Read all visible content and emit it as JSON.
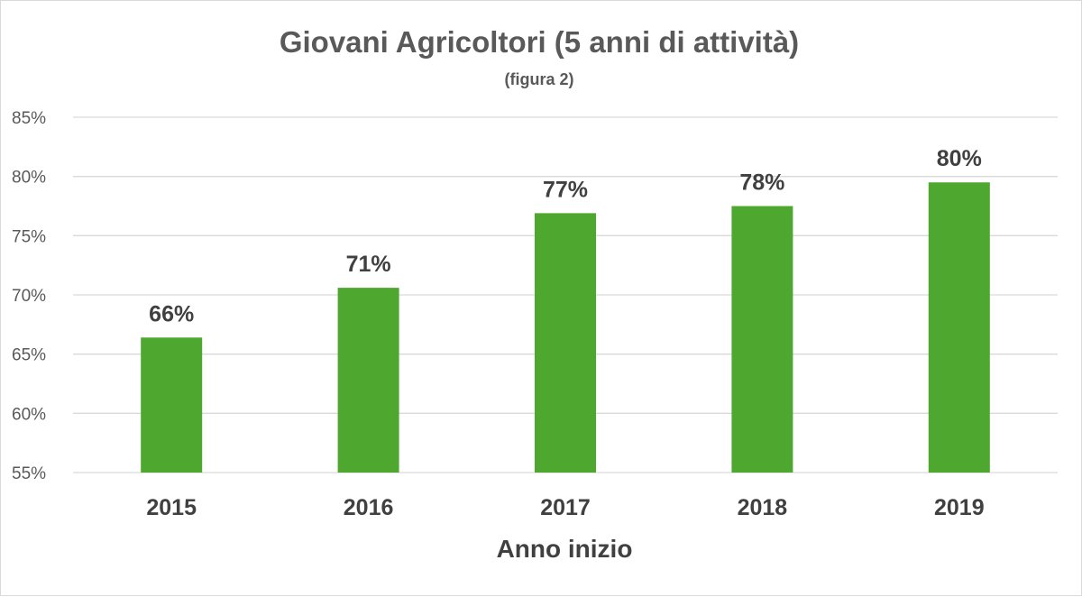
{
  "chart_data": {
    "type": "bar",
    "title": "Giovani Agricoltori (5 anni di attività)",
    "subtitle": "(figura 2)",
    "xlabel": "Anno inizio",
    "ylabel": "",
    "categories": [
      "2015",
      "2016",
      "2017",
      "2018",
      "2019"
    ],
    "values": [
      66.4,
      70.6,
      76.9,
      77.5,
      79.5
    ],
    "data_labels": [
      "66%",
      "71%",
      "77%",
      "78%",
      "80%"
    ],
    "ylim": [
      55,
      85
    ],
    "yticks": [
      55,
      60,
      65,
      70,
      75,
      80,
      85
    ],
    "ytick_labels": [
      "55%",
      "60%",
      "65%",
      "70%",
      "75%",
      "80%",
      "85%"
    ],
    "grid": true,
    "legend": "none",
    "colors": {
      "bar": "#4ea72e",
      "grid": "#d9d9d9",
      "text": "#595959"
    }
  }
}
